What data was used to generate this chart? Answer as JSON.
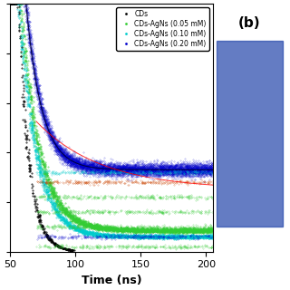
{
  "xlabel": "Time (ns)",
  "xlim": [
    50,
    205
  ],
  "ylim": [
    0,
    1.0
  ],
  "legend_labels": [
    "CDs",
    "CDs-AgNs (0.05 mM)",
    "CDs-AgNs (0.10 mM)",
    "CDs-AgNs (0.20 mM)"
  ],
  "legend_colors": [
    "#000000",
    "#33cc33",
    "#00cccc",
    "#0000cc"
  ],
  "bg_color": "#ffffff",
  "panel_label": "(b)",
  "seed": 42,
  "xticks": [
    50,
    100,
    150,
    200
  ],
  "fit_colors": [
    "#000055",
    "#cc0000",
    "#888888"
  ],
  "noise_floor_020": 0.35,
  "noise_floor_005": 0.1,
  "noise_floor_010": 0.07,
  "noise_floor_cds": 0.03
}
